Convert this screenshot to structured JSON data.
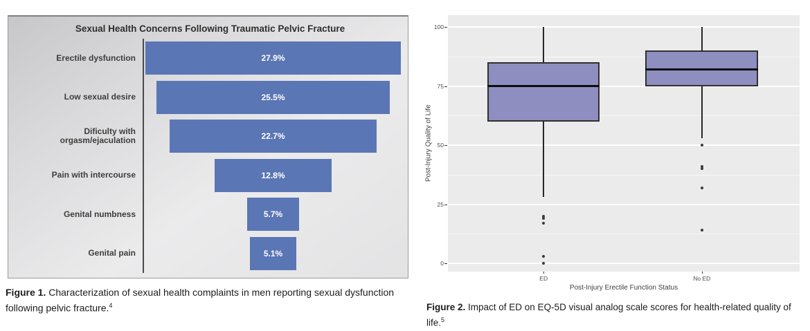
{
  "figure1": {
    "caption": {
      "label": "Figure 1.",
      "text": " Characterization of sexual health complaints in men reporting sexual dysfunction following pelvic fracture.",
      "ref": "4"
    }
  },
  "figure2": {
    "caption": {
      "label": "Figure 2.",
      "text": " Impact of ED on EQ-5D visual analog scale scores for health-related quality of life.",
      "ref": "5"
    }
  },
  "colors": {
    "funnel_bar": "#5b76b5",
    "box_fill": "#8e8ec0",
    "panel_bg": "#ebebeb"
  },
  "chart_data": [
    {
      "type": "bar",
      "subtype": "centered-funnel-horizontal",
      "title": "Sexual Health Concerns Following Traumatic Pelvic Fracture",
      "categories": [
        "Erectile dysfunction",
        "Low sexual desire",
        "Dificulty with orgasm/ejaculation",
        "Pain with intercourse",
        "Genital numbness",
        "Genital pain"
      ],
      "values": [
        27.9,
        25.5,
        22.7,
        12.8,
        5.7,
        5.1
      ],
      "value_labels": [
        "27.9%",
        "25.5%",
        "22.7%",
        "12.8%",
        "5.7%",
        "5.1%"
      ],
      "xlabel": "",
      "ylabel": "",
      "grid": false,
      "legend": false
    },
    {
      "type": "boxplot",
      "title": "",
      "xlabel": "Post-Injury Erectile Function Status",
      "ylabel": "Post-Injury Quality of Life",
      "ylim": [
        0,
        100
      ],
      "yticks": [
        100,
        75,
        50,
        25,
        0
      ],
      "ytick_labels": [
        "100",
        "75",
        "50",
        "25",
        "0"
      ],
      "minor_gridlines": [
        87.5,
        62.5,
        37.5,
        12.5
      ],
      "grid": true,
      "legend": false,
      "groups": [
        {
          "label": "ED",
          "whisker_low": 28,
          "q1": 60,
          "median": 75,
          "q3": 85,
          "whisker_high": 100,
          "outliers": [
            20,
            19,
            17,
            3,
            0
          ]
        },
        {
          "label": "No ED",
          "whisker_low": 53,
          "q1": 75,
          "median": 82,
          "q3": 90,
          "whisker_high": 100,
          "outliers": [
            50,
            41,
            40,
            32,
            14
          ]
        }
      ]
    }
  ]
}
